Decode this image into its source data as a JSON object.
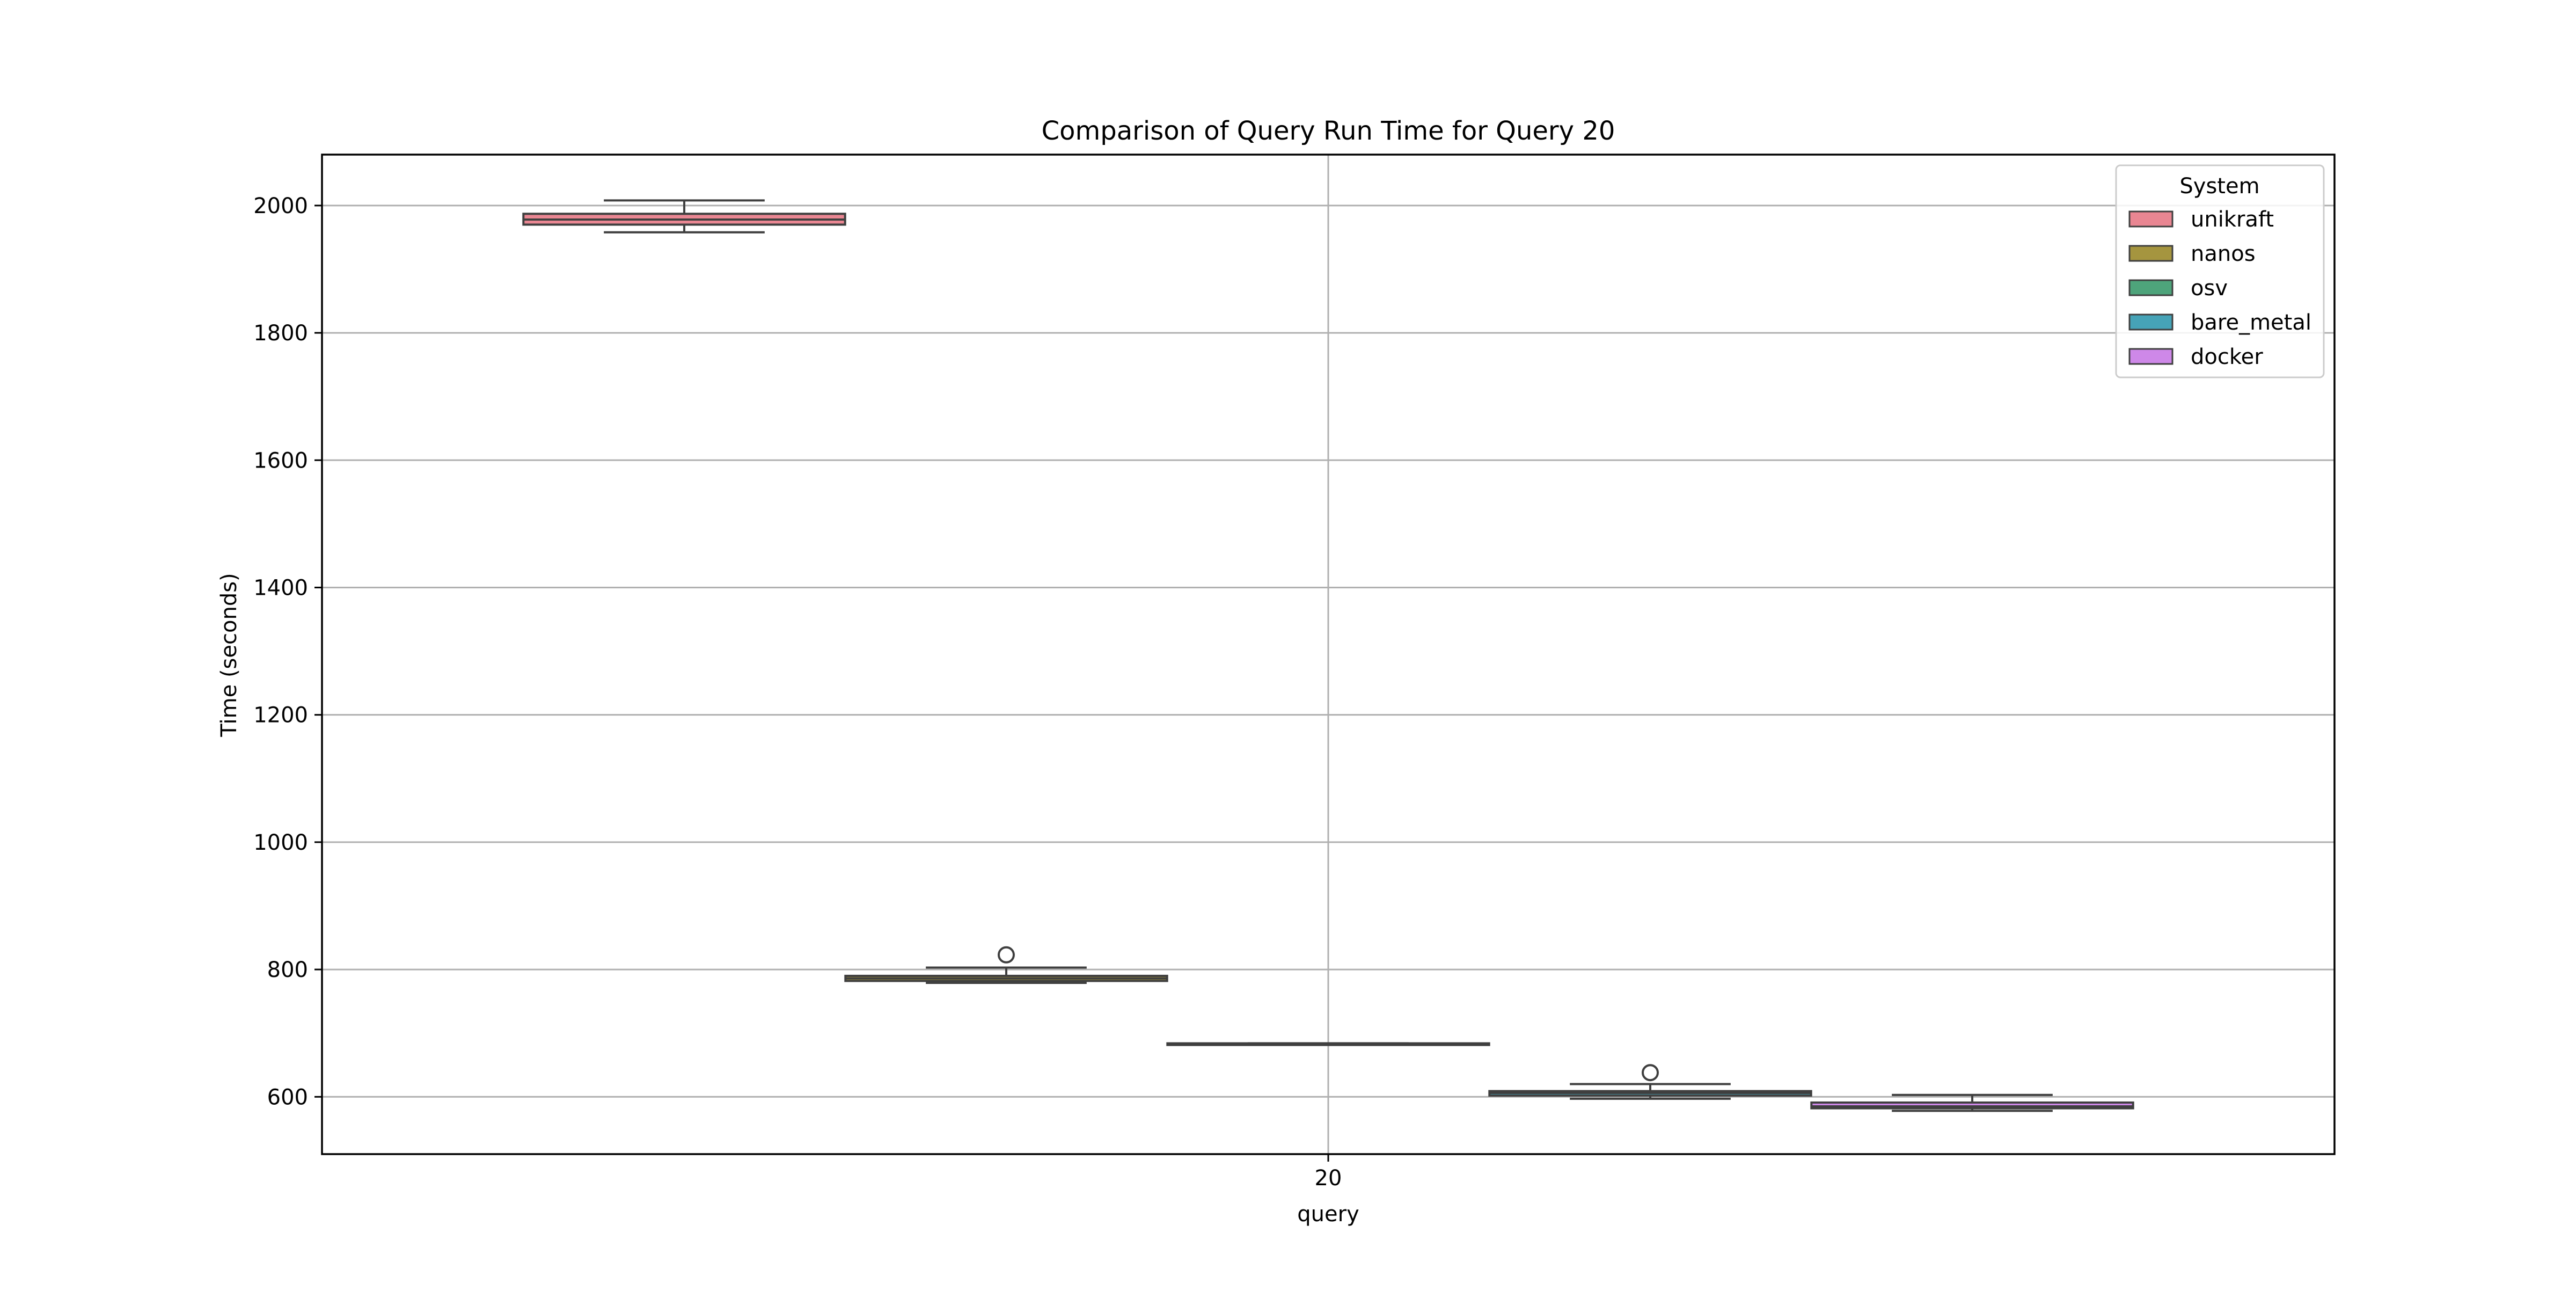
{
  "chart_data": {
    "type": "box",
    "title": "Comparison of Query Run Time for Query 20",
    "xlabel": "query",
    "ylabel": "Time (seconds)",
    "categories": [
      "20"
    ],
    "ylim": [
      510,
      2080
    ],
    "yticks": [
      600,
      800,
      1000,
      1200,
      1400,
      1600,
      1800,
      2000
    ],
    "grid": true,
    "legend": {
      "title": "System",
      "position": "top-right"
    },
    "series": [
      {
        "name": "unikraft",
        "color": "#E98692",
        "min": 1958,
        "q1": 1970,
        "median": 1978,
        "q3": 1987,
        "max": 2008,
        "outliers": []
      },
      {
        "name": "nanos",
        "color": "#A5953F",
        "min": 779,
        "q1": 782,
        "median": 786,
        "q3": 790,
        "max": 803,
        "outliers": [
          823
        ]
      },
      {
        "name": "osv",
        "color": "#4EA47B",
        "min": 682,
        "q1": 682,
        "median": 683,
        "q3": 684,
        "max": 684,
        "outliers": []
      },
      {
        "name": "bare_metal",
        "color": "#46A3B7",
        "min": 597,
        "q1": 602,
        "median": 606,
        "q3": 609,
        "max": 620,
        "outliers": [
          638
        ]
      },
      {
        "name": "docker",
        "color": "#CE88E8",
        "min": 578,
        "q1": 582,
        "median": 585,
        "q3": 591,
        "max": 603,
        "outliers": []
      }
    ]
  }
}
